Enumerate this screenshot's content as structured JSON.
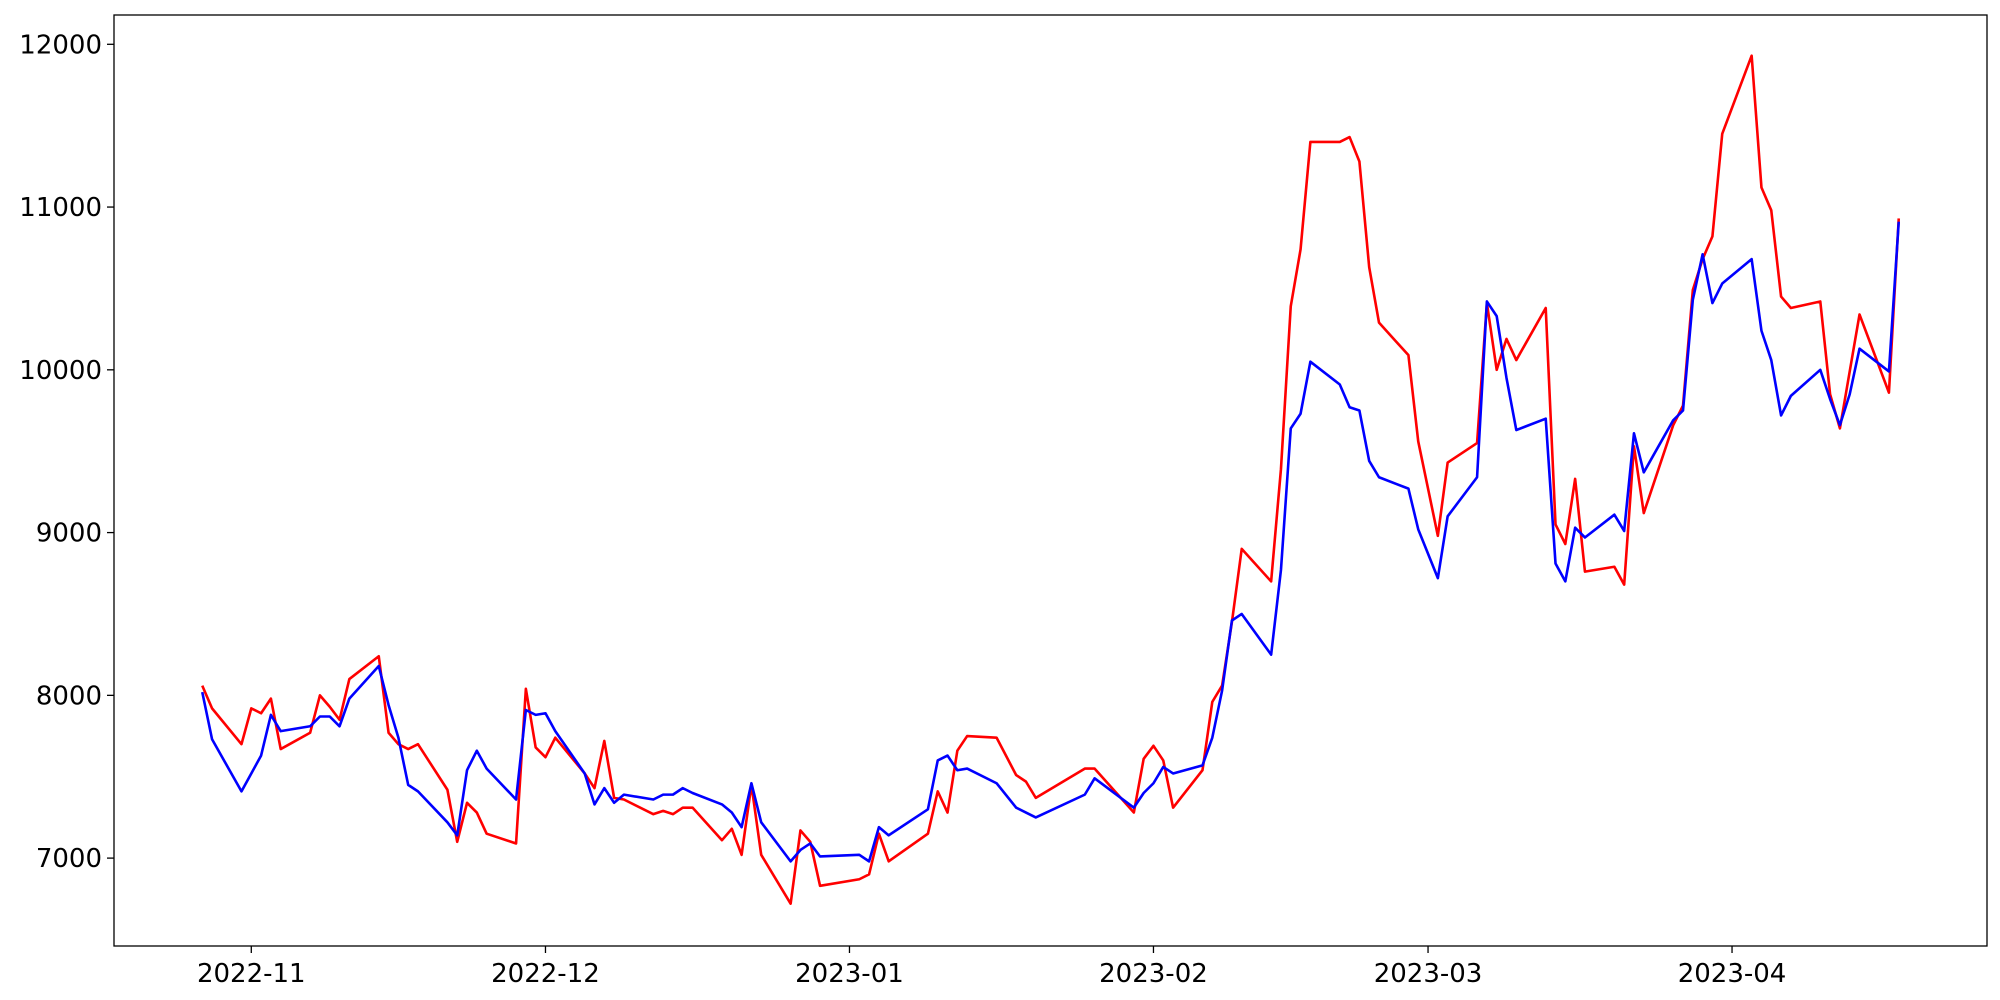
{
  "chart_data": {
    "type": "line",
    "x": [
      "2022-10-27",
      "2022-10-28",
      "2022-10-31",
      "2022-11-01",
      "2022-11-02",
      "2022-11-03",
      "2022-11-04",
      "2022-11-07",
      "2022-11-08",
      "2022-11-09",
      "2022-11-10",
      "2022-11-11",
      "2022-11-14",
      "2022-11-15",
      "2022-11-16",
      "2022-11-17",
      "2022-11-18",
      "2022-11-21",
      "2022-11-22",
      "2022-11-23",
      "2022-11-24",
      "2022-11-25",
      "2022-11-28",
      "2022-11-29",
      "2022-11-30",
      "2022-12-01",
      "2022-12-02",
      "2022-12-05",
      "2022-12-06",
      "2022-12-07",
      "2022-12-08",
      "2022-12-09",
      "2022-12-12",
      "2022-12-13",
      "2022-12-14",
      "2022-12-15",
      "2022-12-16",
      "2022-12-19",
      "2022-12-20",
      "2022-12-21",
      "2022-12-22",
      "2022-12-23",
      "2022-12-26",
      "2022-12-27",
      "2022-12-28",
      "2022-12-29",
      "2023-01-02",
      "2023-01-03",
      "2023-01-04",
      "2023-01-05",
      "2023-01-09",
      "2023-01-10",
      "2023-01-11",
      "2023-01-12",
      "2023-01-13",
      "2023-01-16",
      "2023-01-18",
      "2023-01-19",
      "2023-01-20",
      "2023-01-25",
      "2023-01-26",
      "2023-01-30",
      "2023-01-31",
      "2023-02-01",
      "2023-02-02",
      "2023-02-03",
      "2023-02-06",
      "2023-02-07",
      "2023-02-08",
      "2023-02-09",
      "2023-02-10",
      "2023-02-13",
      "2023-02-14",
      "2023-02-15",
      "2023-02-16",
      "2023-02-17",
      "2023-02-20",
      "2023-02-21",
      "2023-02-22",
      "2023-02-23",
      "2023-02-24",
      "2023-02-27",
      "2023-02-28",
      "2023-03-02",
      "2023-03-03",
      "2023-03-06",
      "2023-03-07",
      "2023-03-08",
      "2023-03-09",
      "2023-03-10",
      "2023-03-13",
      "2023-03-14",
      "2023-03-15",
      "2023-03-16",
      "2023-03-17",
      "2023-03-20",
      "2023-03-21",
      "2023-03-22",
      "2023-03-23",
      "2023-03-26",
      "2023-03-27",
      "2023-03-28",
      "2023-03-29",
      "2023-03-30",
      "2023-03-31",
      "2023-04-03",
      "2023-04-04",
      "2023-04-05",
      "2023-04-06",
      "2023-04-07",
      "2023-04-10",
      "2023-04-11",
      "2023-04-12",
      "2023-04-13",
      "2023-04-14",
      "2023-04-17",
      "2023-04-18"
    ],
    "series": [
      {
        "color": "#ff0000",
        "values": [
          8060,
          7920,
          7700,
          7920,
          7890,
          7980,
          7670,
          7770,
          8000,
          7930,
          7850,
          8100,
          8240,
          7770,
          7700,
          7670,
          7700,
          7420,
          7100,
          7340,
          7280,
          7150,
          7090,
          8040,
          7680,
          7620,
          7740,
          7520,
          7430,
          7720,
          7370,
          7360,
          7270,
          7290,
          7270,
          7310,
          7310,
          7110,
          7180,
          7020,
          7450,
          7020,
          6720,
          7170,
          7100,
          6830,
          6870,
          6900,
          7150,
          6980,
          7150,
          7410,
          7280,
          7660,
          7750,
          7740,
          7510,
          7470,
          7370,
          7550,
          7550,
          7280,
          7610,
          7690,
          7600,
          7310,
          7540,
          7960,
          8060,
          8450,
          8900,
          8700,
          9390,
          10390,
          10740,
          11400,
          11400,
          11430,
          11280,
          10630,
          10290,
          10090,
          9560,
          8980,
          9430,
          9550,
          10410,
          10000,
          10190,
          10060,
          10380,
          9050,
          8930,
          9330,
          8760,
          8790,
          8680,
          9530,
          9120,
          9660,
          9780,
          10490,
          10680,
          10820,
          11450,
          11930,
          11120,
          10980,
          10450,
          10380,
          10420,
          9850,
          9640,
          9990,
          10340,
          9860,
          10930
        ]
      },
      {
        "color": "#0000ff",
        "values": [
          8020,
          7730,
          7410,
          7520,
          7630,
          7880,
          7780,
          7810,
          7870,
          7870,
          7810,
          7980,
          8180,
          7940,
          7740,
          7450,
          7410,
          7220,
          7140,
          7540,
          7660,
          7550,
          7360,
          7910,
          7880,
          7890,
          7780,
          7520,
          7330,
          7430,
          7340,
          7390,
          7360,
          7390,
          7390,
          7430,
          7400,
          7330,
          7280,
          7190,
          7460,
          7220,
          6980,
          7050,
          7090,
          7010,
          7020,
          6980,
          7190,
          7140,
          7300,
          7600,
          7630,
          7540,
          7550,
          7460,
          7310,
          7280,
          7250,
          7390,
          7490,
          7310,
          7400,
          7460,
          7560,
          7520,
          7570,
          7740,
          8030,
          8460,
          8500,
          8250,
          8770,
          9640,
          9730,
          10050,
          9910,
          9770,
          9750,
          9440,
          9340,
          9270,
          9020,
          8720,
          9100,
          9340,
          10420,
          10330,
          9950,
          9630,
          9700,
          8810,
          8700,
          9030,
          8970,
          9110,
          9010,
          9610,
          9370,
          9690,
          9750,
          10430,
          10710,
          10410,
          10530,
          10680,
          10240,
          10060,
          9720,
          9840,
          10000,
          9820,
          9660,
          9850,
          10130,
          9990,
          10910
        ]
      }
    ],
    "xlim": [
      "2022-10-18",
      "2023-04-27"
    ],
    "xticks": [
      {
        "value": "2022-11-01",
        "label": "2022-11"
      },
      {
        "value": "2022-12-01",
        "label": "2022-12"
      },
      {
        "value": "2023-01-01",
        "label": "2023-01"
      },
      {
        "value": "2023-02-01",
        "label": "2023-02"
      },
      {
        "value": "2023-03-01",
        "label": "2023-03"
      },
      {
        "value": "2023-04-01",
        "label": "2023-04"
      }
    ],
    "ylim": [
      6460,
      12180
    ],
    "yticks": [
      7000,
      8000,
      9000,
      10000,
      11000,
      12000
    ]
  }
}
